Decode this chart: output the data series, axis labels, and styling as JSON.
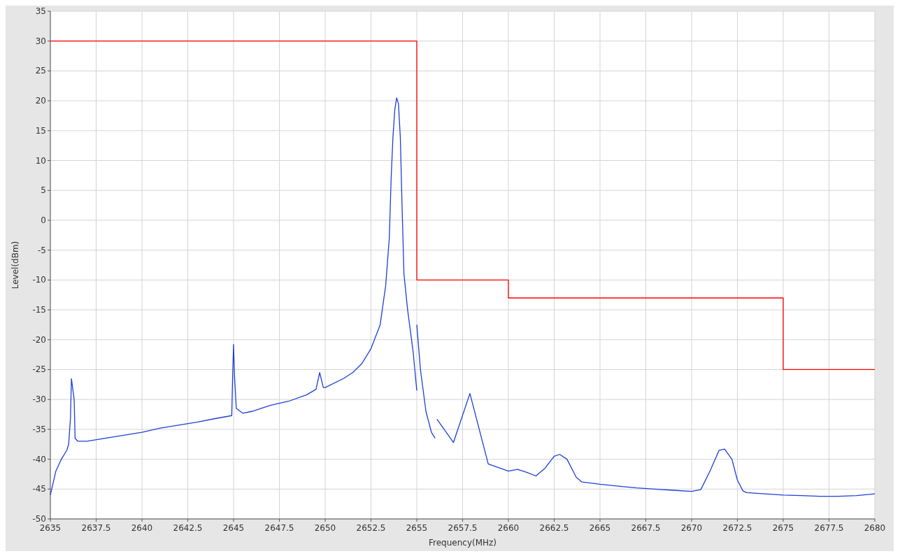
{
  "chart_data": {
    "type": "line",
    "xlabel": "Frequency(MHz)",
    "ylabel": "Level(dBm)",
    "xlim": [
      2635,
      2680
    ],
    "xticks": [
      2635,
      2637.5,
      2640,
      2642.5,
      2645,
      2647.5,
      2650,
      2652.5,
      2655,
      2657.5,
      2660,
      2662.5,
      2665,
      2667.5,
      2670,
      2672.5,
      2675,
      2677.5,
      2680
    ],
    "ylim": [
      -50,
      35
    ],
    "yticks": [
      -50,
      -45,
      -40,
      -35,
      -30,
      -25,
      -20,
      -15,
      -10,
      -5,
      0,
      5,
      10,
      15,
      20,
      25,
      30,
      35
    ],
    "grid": true,
    "marker": "none",
    "line_style": "solid",
    "series": [
      {
        "color": "#1f3fd6",
        "x": [
          2635,
          2635.3,
          2635.6,
          2635.9,
          2636.0,
          2636.1,
          2636.15,
          2636.3,
          2636.35,
          2636.5,
          2637,
          2638,
          2639,
          2640,
          2641,
          2642,
          2643,
          2644,
          2644.9,
          2644.95,
          2645.0,
          2645.05,
          2645.15,
          2645.5,
          2646,
          2647,
          2648,
          2649,
          2649.5,
          2649.7,
          2649.9,
          2650,
          2651,
          2651.5,
          2652,
          2652.5,
          2653,
          2653.3,
          2653.5,
          2653.6,
          2653.7,
          2653.8,
          2653.9,
          2654,
          2654.1,
          2654.2,
          2654.3,
          2654.5,
          2654.8,
          2655
        ],
        "values": [
          -46,
          -42,
          -40,
          -38.5,
          -37.5,
          -33,
          -26.5,
          -30,
          -36.5,
          -37,
          -37,
          -36.5,
          -36,
          -35.5,
          -34.8,
          -34.3,
          -33.8,
          -33.2,
          -32.7,
          -26,
          -20.8,
          -26,
          -31.5,
          -32.3,
          -32,
          -31,
          -30.3,
          -29.2,
          -28.3,
          -25.5,
          -28,
          -28,
          -26.5,
          -25.5,
          -24,
          -21.5,
          -17.5,
          -11,
          -3,
          7,
          14,
          18.5,
          20.5,
          19.5,
          14,
          2,
          -9,
          -15,
          -22,
          -28.5
        ]
      },
      {
        "color": "#1f3fd6",
        "x": [
          2655,
          2655.2,
          2655.5,
          2655.8,
          2656
        ],
        "values": [
          -17.5,
          -25,
          -32,
          -35.5,
          -36.5
        ]
      },
      {
        "color": "#1f3fd6",
        "x": [
          2656.1,
          2657,
          2657.9,
          2658.9,
          2660,
          2660.5,
          2661,
          2661.5,
          2662,
          2662.5,
          2662.8,
          2663.2,
          2663.7,
          2664,
          2665,
          2666,
          2667,
          2668,
          2669,
          2670,
          2670.5,
          2671,
          2671.5,
          2671.8,
          2672.2,
          2672.5,
          2672.8,
          2673,
          2674,
          2675,
          2676,
          2677,
          2678,
          2679,
          2680
        ],
        "values": [
          -33.3,
          -37.2,
          -29,
          -40.8,
          -42,
          -41.7,
          -42.2,
          -42.8,
          -41.5,
          -39.5,
          -39.2,
          -40,
          -43,
          -43.8,
          -44.2,
          -44.5,
          -44.8,
          -45,
          -45.2,
          -45.4,
          -45.1,
          -42,
          -38.5,
          -38.3,
          -40,
          -43.5,
          -45.3,
          -45.6,
          -45.8,
          -46,
          -46.1,
          -46.2,
          -46.2,
          -46.1,
          -45.8
        ]
      },
      {
        "color": "#ff0000",
        "x": [
          2635,
          2655,
          2655,
          2660,
          2660,
          2675,
          2675,
          2680
        ],
        "values": [
          30,
          30,
          -10,
          -10,
          -13,
          -13,
          -25,
          -25
        ]
      }
    ]
  }
}
